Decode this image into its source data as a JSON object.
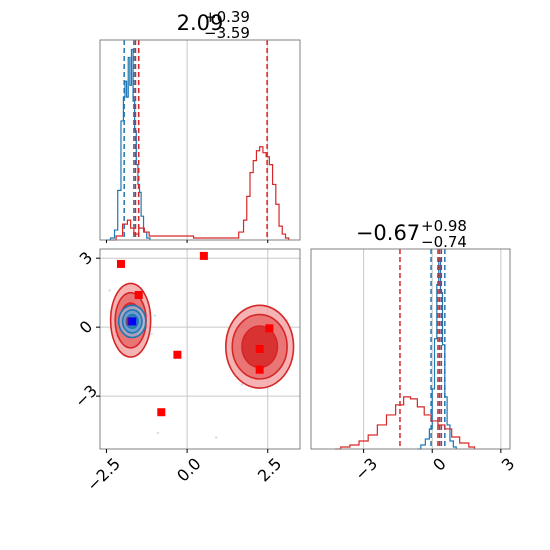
{
  "chart_data": {
    "type": "corner",
    "title": "",
    "colors": {
      "model_a": "#1f77b4",
      "model_b": "#d62728",
      "marker_red": "#ff0000",
      "marker_blue": "#0000ff",
      "grid": "#c8c8c8",
      "axes": "#808080"
    },
    "panels": [
      {
        "id": "marginal-param-1",
        "kind": "histogram",
        "title": {
          "value": "2.09",
          "plus": "+0.39",
          "minus": "−3.59"
        },
        "xlim": [
          -2.7,
          3.5
        ],
        "grid_x": [
          0.0,
          2.5
        ],
        "series": [
          {
            "name": "",
            "color": "#1f77b4",
            "bins": [
              {
                "x": -2.45,
                "y": 0.0
              },
              {
                "x": -2.3,
                "y": 0.01
              },
              {
                "x": -2.2,
                "y": 0.05
              },
              {
                "x": -2.1,
                "y": 0.25
              },
              {
                "x": -2.0,
                "y": 0.6
              },
              {
                "x": -1.95,
                "y": 0.72
              },
              {
                "x": -1.9,
                "y": 0.8
              },
              {
                "x": -1.85,
                "y": 0.72
              },
              {
                "x": -1.8,
                "y": 0.92
              },
              {
                "x": -1.75,
                "y": 0.78
              },
              {
                "x": -1.7,
                "y": 0.96
              },
              {
                "x": -1.65,
                "y": 0.7
              },
              {
                "x": -1.6,
                "y": 0.55
              },
              {
                "x": -1.55,
                "y": 0.38
              },
              {
                "x": -1.5,
                "y": 0.28
              },
              {
                "x": -1.45,
                "y": 0.24
              },
              {
                "x": -1.4,
                "y": 0.12
              },
              {
                "x": -1.3,
                "y": 0.04
              },
              {
                "x": -1.2,
                "y": 0.01
              }
            ],
            "quantiles": [
              -1.95,
              -1.65,
              -1.5
            ]
          },
          {
            "name": "",
            "color": "#d62728",
            "bins": [
              {
                "x": -2.3,
                "y": 0.0
              },
              {
                "x": -2.1,
                "y": 0.02
              },
              {
                "x": -1.9,
                "y": 0.08
              },
              {
                "x": -1.8,
                "y": 0.1
              },
              {
                "x": -1.7,
                "y": 0.06
              },
              {
                "x": -1.6,
                "y": 0.03
              },
              {
                "x": -1.4,
                "y": 0.06
              },
              {
                "x": -1.25,
                "y": 0.04
              },
              {
                "x": -1.1,
                "y": 0.02
              },
              {
                "x": 1.5,
                "y": 0.01
              },
              {
                "x": 1.7,
                "y": 0.04
              },
              {
                "x": 1.8,
                "y": 0.1
              },
              {
                "x": 1.9,
                "y": 0.22
              },
              {
                "x": 2.0,
                "y": 0.34
              },
              {
                "x": 2.1,
                "y": 0.4
              },
              {
                "x": 2.2,
                "y": 0.45
              },
              {
                "x": 2.3,
                "y": 0.47
              },
              {
                "x": 2.4,
                "y": 0.44
              },
              {
                "x": 2.5,
                "y": 0.42
              },
              {
                "x": 2.6,
                "y": 0.38
              },
              {
                "x": 2.7,
                "y": 0.28
              },
              {
                "x": 2.8,
                "y": 0.18
              },
              {
                "x": 2.9,
                "y": 0.07
              },
              {
                "x": 3.0,
                "y": 0.03
              },
              {
                "x": 3.1,
                "y": 0.01
              }
            ],
            "quantiles": [
              -1.6,
              -1.5,
              2.48
            ]
          }
        ]
      },
      {
        "id": "joint-param-1-2",
        "kind": "scatter-contour",
        "xlim": [
          -2.7,
          3.5
        ],
        "ylim": [
          -5.3,
          3.4
        ],
        "xticks": [
          -2.5,
          0.0,
          2.5
        ],
        "xtick_labels": [
          "−2.5",
          "0.0",
          "2.5"
        ],
        "yticks": [
          3,
          0,
          -3
        ],
        "ytick_labels": [
          "3",
          "0",
          "−3"
        ],
        "grid_x": [
          0.0,
          2.5
        ],
        "grid_y": [
          3,
          0,
          -3
        ],
        "contours": [
          {
            "series": "model_b",
            "center": [
              -1.75,
              0.3
            ],
            "radii": [
              [
                0.62,
                1.6
              ],
              [
                0.48,
                1.2
              ],
              [
                0.32,
                0.75
              ]
            ]
          },
          {
            "series": "model_b",
            "center": [
              2.25,
              -0.85
            ],
            "radii": [
              [
                1.05,
                1.8
              ],
              [
                0.85,
                1.4
              ],
              [
                0.55,
                0.9
              ]
            ]
          },
          {
            "series": "model_a",
            "center": [
              -1.7,
              0.25
            ],
            "radii": [
              [
                0.42,
                0.7
              ],
              [
                0.3,
                0.5
              ],
              [
                0.18,
                0.3
              ]
            ]
          }
        ],
        "red_markers": [
          {
            "x": -2.05,
            "y": 2.75
          },
          {
            "x": -1.5,
            "y": 1.4
          },
          {
            "x": 0.52,
            "y": 3.1
          },
          {
            "x": -1.75,
            "y": 0.25
          },
          {
            "x": 2.55,
            "y": -0.05
          },
          {
            "x": -0.3,
            "y": -1.2
          },
          {
            "x": 2.25,
            "y": -0.95
          },
          {
            "x": 2.25,
            "y": -1.85
          },
          {
            "x": -0.8,
            "y": -3.7
          }
        ],
        "blue_markers": [
          {
            "x": -1.7,
            "y": 0.25
          }
        ]
      },
      {
        "id": "marginal-param-2",
        "kind": "histogram",
        "title": {
          "value": "−0.67",
          "plus": "+0.98",
          "minus": "−0.74"
        },
        "xlim": [
          -5.3,
          3.4
        ],
        "xticks": [
          -3,
          0,
          3
        ],
        "xtick_labels": [
          "−3",
          "0",
          "3"
        ],
        "grid_x": [
          -3,
          0,
          3
        ],
        "series": [
          {
            "name": "",
            "color": "#1f77b4",
            "bins": [
              {
                "x": -0.6,
                "y": 0.0
              },
              {
                "x": -0.4,
                "y": 0.02
              },
              {
                "x": -0.2,
                "y": 0.05
              },
              {
                "x": -0.05,
                "y": 0.1
              },
              {
                "x": 0.05,
                "y": 0.3
              },
              {
                "x": 0.15,
                "y": 0.55
              },
              {
                "x": 0.25,
                "y": 0.82
              },
              {
                "x": 0.32,
                "y": 0.95
              },
              {
                "x": 0.4,
                "y": 0.78
              },
              {
                "x": 0.5,
                "y": 0.52
              },
              {
                "x": 0.6,
                "y": 0.26
              },
              {
                "x": 0.7,
                "y": 0.12
              },
              {
                "x": 0.85,
                "y": 0.04
              },
              {
                "x": 1.0,
                "y": 0.01
              }
            ],
            "quantiles": [
              -0.05,
              0.32,
              0.55
            ]
          },
          {
            "name": "",
            "color": "#d62728",
            "bins": [
              {
                "x": -4.2,
                "y": 0.0
              },
              {
                "x": -3.8,
                "y": 0.01
              },
              {
                "x": -3.4,
                "y": 0.02
              },
              {
                "x": -3.0,
                "y": 0.04
              },
              {
                "x": -2.6,
                "y": 0.07
              },
              {
                "x": -2.2,
                "y": 0.12
              },
              {
                "x": -1.8,
                "y": 0.17
              },
              {
                "x": -1.4,
                "y": 0.22
              },
              {
                "x": -1.1,
                "y": 0.26
              },
              {
                "x": -0.8,
                "y": 0.25
              },
              {
                "x": -0.5,
                "y": 0.21
              },
              {
                "x": -0.2,
                "y": 0.17
              },
              {
                "x": 0.1,
                "y": 0.14
              },
              {
                "x": 0.4,
                "y": 0.12
              },
              {
                "x": 0.7,
                "y": 0.1
              },
              {
                "x": 1.0,
                "y": 0.06
              },
              {
                "x": 1.4,
                "y": 0.03
              },
              {
                "x": 1.8,
                "y": 0.01
              }
            ],
            "quantiles": [
              -1.41,
              0.25,
              0.4
            ]
          }
        ]
      }
    ]
  }
}
